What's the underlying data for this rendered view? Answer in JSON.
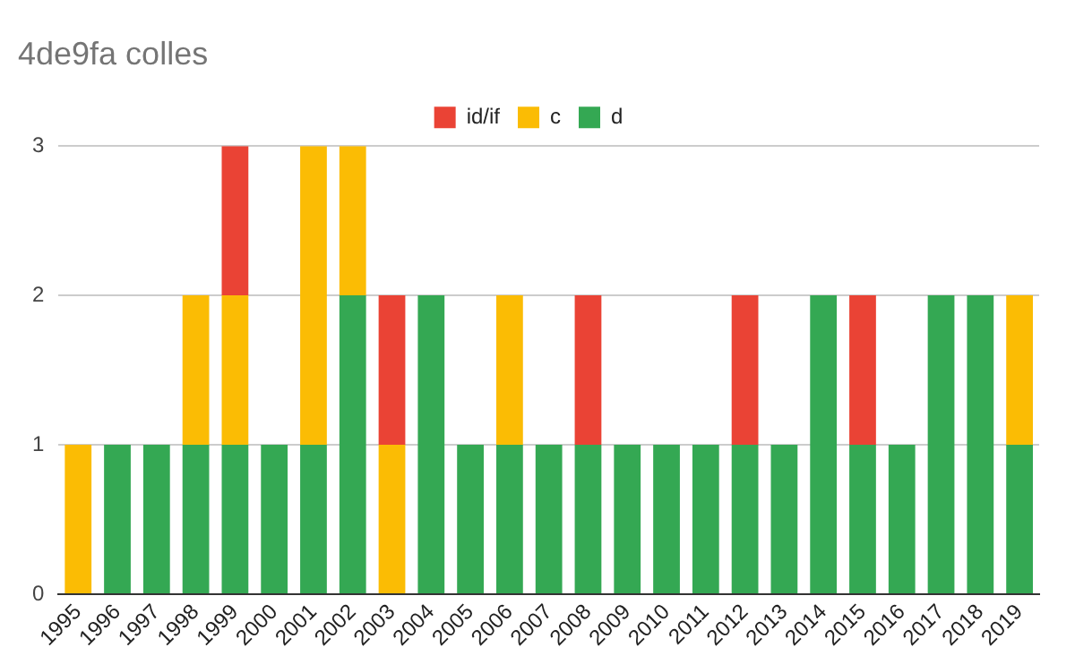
{
  "chart_data": {
    "type": "bar",
    "title": "4de9fa colles",
    "stacked": true,
    "legend": "top",
    "grid": "y",
    "categories": [
      "1995",
      "1996",
      "1997",
      "1998",
      "1999",
      "2000",
      "2001",
      "2002",
      "2003",
      "2004",
      "2005",
      "2006",
      "2007",
      "2008",
      "2009",
      "2010",
      "2011",
      "2012",
      "2013",
      "2014",
      "2015",
      "2016",
      "2017",
      "2018",
      "2019"
    ],
    "series": [
      {
        "name": "d",
        "color": "#34a853",
        "values": [
          0,
          1,
          1,
          1,
          1,
          1,
          1,
          2,
          0,
          2,
          1,
          1,
          1,
          1,
          1,
          1,
          1,
          1,
          1,
          2,
          1,
          1,
          2,
          2,
          1
        ]
      },
      {
        "name": "c",
        "color": "#fbbc04",
        "values": [
          1,
          0,
          0,
          1,
          1,
          0,
          2,
          1,
          1,
          0,
          0,
          1,
          0,
          0,
          0,
          0,
          0,
          0,
          0,
          0,
          0,
          0,
          0,
          0,
          1
        ]
      },
      {
        "name": "id/if",
        "color": "#ea4335",
        "values": [
          0,
          0,
          0,
          0,
          1,
          0,
          0,
          0,
          1,
          0,
          0,
          0,
          0,
          1,
          0,
          0,
          0,
          1,
          0,
          0,
          1,
          0,
          0,
          0,
          0
        ]
      }
    ],
    "ylim": [
      0,
      3
    ],
    "yticks": [
      0,
      1,
      2,
      3
    ]
  }
}
